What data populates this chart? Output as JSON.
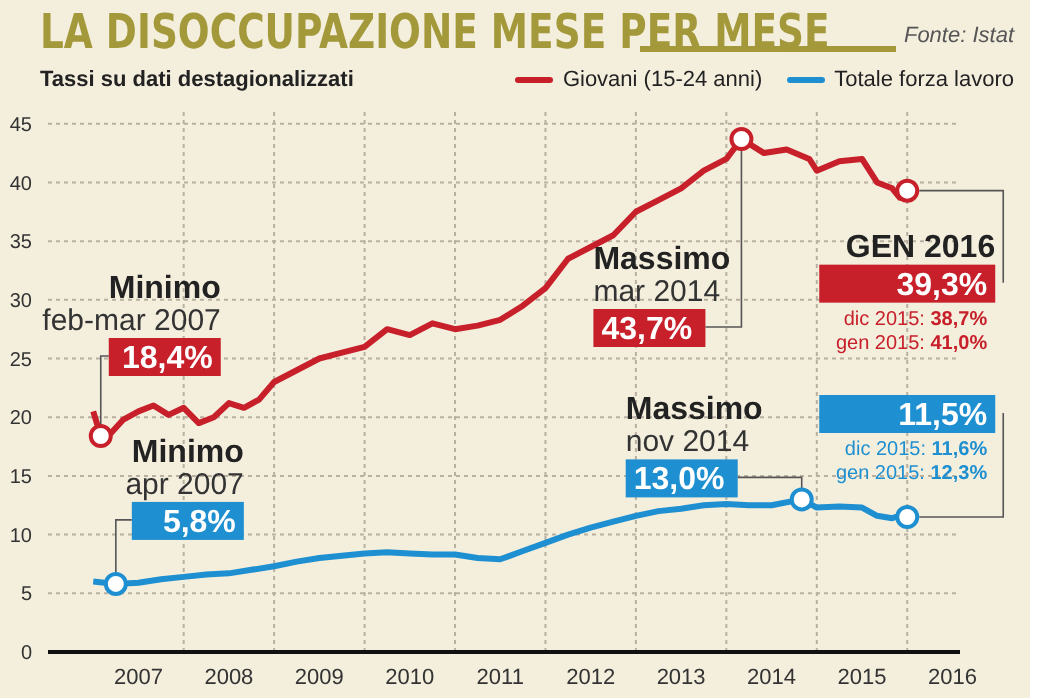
{
  "chart_data": {
    "type": "line",
    "title": "LA DISOCCUPAZIONE MESE PER MESE",
    "subtitle": "Tassi su dati destagionalizzati",
    "annotations": [
      "Fonte: Istat",
      {
        "text": "Minimo\nfeb-mar 2007\n18,4%",
        "x": "2007-02",
        "y": 18.4
      },
      {
        "text": "Minimo\napr 2007\n5,8%",
        "x": "2007-04",
        "y": 5.8
      },
      {
        "text": "Massimo\nmar 2014\n43,7%",
        "x": "2014-03",
        "y": 43.7
      },
      {
        "text": "Massimo\nnov 2014\n13,0%",
        "x": "2014-11",
        "y": 13.0
      },
      {
        "text": "GEN 2016\n39,3%\ndic 2015: 38,7%\ngen 2015: 41,0%",
        "x": "2016-01",
        "y": 39.3
      },
      {
        "text": "11,5%\ndic 2015: 11,6%\ngen 2015: 12,3%",
        "x": "2016-01",
        "y": 11.5
      }
    ],
    "series": [
      {
        "name": "Giovani (15-24 anni)",
        "color": "#c8202a",
        "x": [
          "2007-01",
          "2007-02",
          "2007-03",
          "2007-05",
          "2007-07",
          "2007-09",
          "2007-11",
          "2008-01",
          "2008-03",
          "2008-05",
          "2008-07",
          "2008-09",
          "2008-11",
          "2009-01",
          "2009-04",
          "2009-07",
          "2009-10",
          "2010-01",
          "2010-04",
          "2010-07",
          "2010-10",
          "2011-01",
          "2011-04",
          "2011-07",
          "2011-10",
          "2012-01",
          "2012-04",
          "2012-07",
          "2012-10",
          "2013-01",
          "2013-04",
          "2013-07",
          "2013-10",
          "2014-01",
          "2014-03",
          "2014-06",
          "2014-09",
          "2014-12",
          "2015-01",
          "2015-04",
          "2015-07",
          "2015-09",
          "2015-11",
          "2015-12",
          "2016-01"
        ],
        "values": [
          20.5,
          18.4,
          18.4,
          19.8,
          20.5,
          21.0,
          20.2,
          20.8,
          19.5,
          20.0,
          21.2,
          20.8,
          21.5,
          23.0,
          24.0,
          25.0,
          25.5,
          26.0,
          27.5,
          27.0,
          28.0,
          27.5,
          27.8,
          28.3,
          29.5,
          31.0,
          33.5,
          34.5,
          35.5,
          37.5,
          38.5,
          39.5,
          41.0,
          42.0,
          43.7,
          42.5,
          42.8,
          42.0,
          41.0,
          41.8,
          42.0,
          40.0,
          39.5,
          38.7,
          39.3
        ]
      },
      {
        "name": "Totale forza lavoro",
        "color": "#1e8fd0",
        "x": [
          "2007-01",
          "2007-04",
          "2007-07",
          "2007-10",
          "2008-01",
          "2008-04",
          "2008-07",
          "2008-10",
          "2009-01",
          "2009-04",
          "2009-07",
          "2009-10",
          "2010-01",
          "2010-04",
          "2010-07",
          "2010-10",
          "2011-01",
          "2011-04",
          "2011-07",
          "2011-10",
          "2012-01",
          "2012-04",
          "2012-07",
          "2012-10",
          "2013-01",
          "2013-04",
          "2013-07",
          "2013-10",
          "2014-01",
          "2014-04",
          "2014-07",
          "2014-11",
          "2015-01",
          "2015-04",
          "2015-07",
          "2015-09",
          "2015-11",
          "2015-12",
          "2016-01"
        ],
        "values": [
          6.0,
          5.8,
          5.9,
          6.2,
          6.4,
          6.6,
          6.7,
          7.0,
          7.3,
          7.7,
          8.0,
          8.2,
          8.4,
          8.5,
          8.4,
          8.3,
          8.3,
          8.0,
          7.9,
          8.6,
          9.3,
          10.0,
          10.6,
          11.1,
          11.6,
          12.0,
          12.2,
          12.5,
          12.6,
          12.5,
          12.5,
          13.0,
          12.3,
          12.4,
          12.3,
          11.6,
          11.4,
          11.6,
          11.5
        ]
      }
    ],
    "xlim": [
      "2006-07",
      "2016-08"
    ],
    "xticks": [
      {
        "value": "2007-07",
        "label": "2007"
      },
      {
        "value": "2008-01",
        "label": null
      },
      {
        "value": "2008-07",
        "label": "2008"
      },
      {
        "value": "2009-01",
        "label": null
      },
      {
        "value": "2009-07",
        "label": "2009"
      },
      {
        "value": "2010-01",
        "label": null
      },
      {
        "value": "2010-07",
        "label": "2010"
      },
      {
        "value": "2011-01",
        "label": null
      },
      {
        "value": "2011-07",
        "label": "2011"
      },
      {
        "value": "2012-01",
        "label": null
      },
      {
        "value": "2012-07",
        "label": "2012"
      },
      {
        "value": "2013-01",
        "label": null
      },
      {
        "value": "2013-07",
        "label": "2013"
      },
      {
        "value": "2014-01",
        "label": null
      },
      {
        "value": "2014-07",
        "label": "2014"
      },
      {
        "value": "2015-01",
        "label": null
      },
      {
        "value": "2015-07",
        "label": "2015"
      },
      {
        "value": "2016-01",
        "label": null
      },
      {
        "value": "2016-07",
        "label": "2016"
      }
    ],
    "ylim": [
      0,
      46
    ],
    "yticks": [
      0,
      5,
      10,
      15,
      20,
      25,
      30,
      35,
      40,
      45
    ],
    "grid": true,
    "legend": "top right",
    "marker": "none",
    "line_style": "solid"
  }
}
